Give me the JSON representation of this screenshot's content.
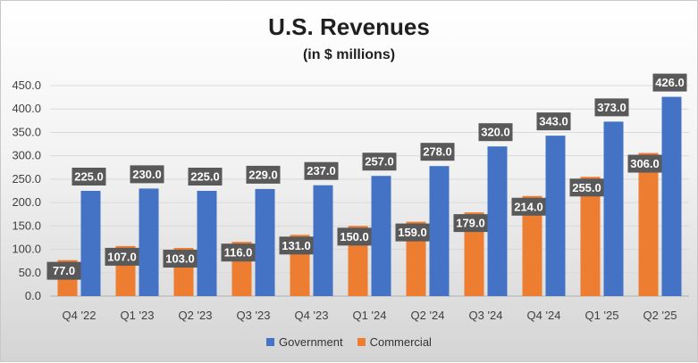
{
  "colors": {
    "government": "#4472c4",
    "commercial": "#ed7d31",
    "label_bg": "#595959",
    "label_text": "#ffffff"
  },
  "legend": {
    "government": "Government",
    "commercial": "Commercial"
  },
  "chart_data": {
    "type": "bar",
    "title": "U.S. Revenues",
    "subtitle": "(in $ millions)",
    "xlabel": "",
    "ylabel": "",
    "ylim": [
      0,
      450
    ],
    "yticks": [
      "0.0",
      "50.0",
      "100.0",
      "150.0",
      "200.0",
      "250.0",
      "300.0",
      "350.0",
      "400.0",
      "450.0"
    ],
    "grid": true,
    "legend_position": "bottom",
    "categories": [
      "Q4 '22",
      "Q1 '23",
      "Q2 '23",
      "Q3 '23",
      "Q4 '23",
      "Q1 '24",
      "Q2 '24",
      "Q3 '24",
      "Q4 '24",
      "Q1 '25",
      "Q2 '25"
    ],
    "series": [
      {
        "name": "Government",
        "values": [
          225.0,
          230.0,
          225.0,
          229.0,
          237.0,
          257.0,
          278.0,
          320.0,
          343.0,
          373.0,
          426.0
        ]
      },
      {
        "name": "Commercial",
        "values": [
          77.0,
          107.0,
          103.0,
          116.0,
          131.0,
          150.0,
          159.0,
          179.0,
          214.0,
          255.0,
          306.0
        ]
      }
    ]
  }
}
